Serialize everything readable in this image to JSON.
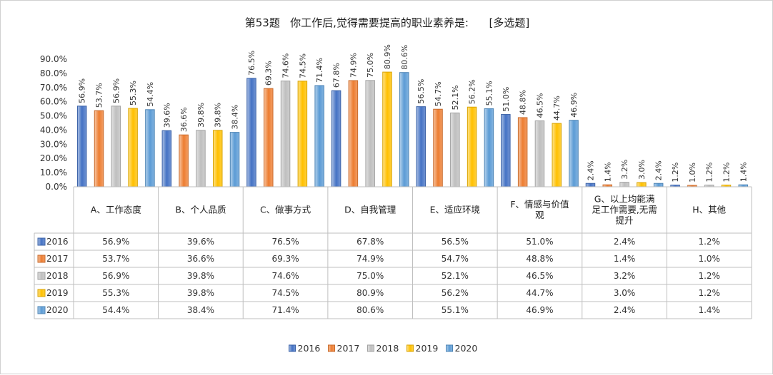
{
  "chart_data": {
    "type": "bar",
    "title": "第53题   你工作后,觉得需要提高的职业素养是:      [多选题]",
    "categories": [
      [
        "A、工作态度"
      ],
      [
        "B、个人品质"
      ],
      [
        "C、做事方式"
      ],
      [
        "D、自我管理"
      ],
      [
        "E、适应环境"
      ],
      [
        "F、情感与价值",
        "观"
      ],
      [
        "G、以上均能满",
        "足工作需要,无需",
        "提升"
      ],
      [
        "H、其他"
      ]
    ],
    "yticks": [
      "0.0%",
      "10.0%",
      "20.0%",
      "30.0%",
      "40.0%",
      "50.0%",
      "60.0%",
      "70.0%",
      "80.0%",
      "90.0%"
    ],
    "ylim": [
      0,
      90
    ],
    "grid": false,
    "legend_position": "bottom",
    "data_table": true,
    "series": [
      {
        "name": "2016",
        "color": "#4472C4",
        "values": [
          56.9,
          39.6,
          76.5,
          67.8,
          56.5,
          51.0,
          2.4,
          1.2
        ],
        "labels": [
          "56.9%",
          "39.6%",
          "76.5%",
          "67.8%",
          "56.5%",
          "51.0%",
          "2.4%",
          "1.2%"
        ]
      },
      {
        "name": "2017",
        "color": "#ED7D31",
        "values": [
          53.7,
          36.6,
          69.3,
          74.9,
          54.7,
          48.8,
          1.4,
          1.0
        ],
        "labels": [
          "53.7%",
          "36.6%",
          "69.3%",
          "74.9%",
          "54.7%",
          "48.8%",
          "1.4%",
          "1.0%"
        ]
      },
      {
        "name": "2018",
        "color": "#BFBFBF",
        "values": [
          56.9,
          39.8,
          74.6,
          75.0,
          52.1,
          46.5,
          3.2,
          1.2
        ],
        "labels": [
          "56.9%",
          "39.8%",
          "74.6%",
          "75.0%",
          "52.1%",
          "46.5%",
          "3.2%",
          "1.2%"
        ]
      },
      {
        "name": "2019",
        "color": "#FFC000",
        "values": [
          55.3,
          39.8,
          74.5,
          80.9,
          56.2,
          44.7,
          3.0,
          1.2
        ],
        "labels": [
          "55.3%",
          "39.8%",
          "74.5%",
          "80.9%",
          "56.2%",
          "44.7%",
          "3.0%",
          "1.2%"
        ]
      },
      {
        "name": "2020",
        "color": "#5B9BD5",
        "values": [
          54.4,
          38.4,
          71.4,
          80.6,
          55.1,
          46.9,
          2.4,
          1.4
        ],
        "labels": [
          "54.4%",
          "38.4%",
          "71.4%",
          "80.6%",
          "55.1%",
          "46.9%",
          "2.4%",
          "1.4%"
        ]
      }
    ]
  }
}
